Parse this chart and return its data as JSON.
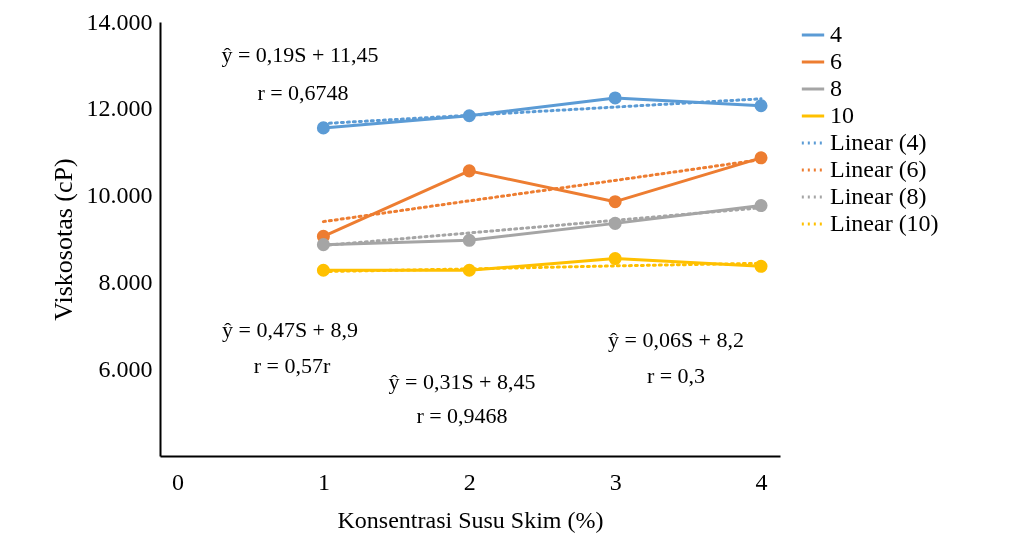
{
  "chart_data": {
    "type": "line",
    "xlabel": "Konsentrasi Susu Skim (%)",
    "ylabel": "Viskosotas (cP)",
    "xlim": [
      -0.12,
      4.13
    ],
    "xticks": [
      0,
      1,
      2,
      3,
      4
    ],
    "ylim": [
      4000,
      14000
    ],
    "yticks": [
      {
        "value": 6000,
        "label": "6.000"
      },
      {
        "value": 8000,
        "label": "8.000"
      },
      {
        "value": 10000,
        "label": "10.000"
      },
      {
        "value": 12000,
        "label": "12.000"
      },
      {
        "value": 14000,
        "label": "14.000"
      }
    ],
    "x": [
      1,
      2,
      3,
      4
    ],
    "marker": "circle",
    "grid": false,
    "legend": "right",
    "series": [
      {
        "name": "4",
        "color": "#5b9bd5",
        "values": [
          11560,
          11840,
          12250,
          12070
        ]
      },
      {
        "name": "6",
        "color": "#ed7d31",
        "values": [
          9060,
          10570,
          9860,
          10870
        ]
      },
      {
        "name": "8",
        "color": "#a5a5a5",
        "values": [
          8870,
          8970,
          9360,
          9770
        ]
      },
      {
        "name": "10",
        "color": "#ffc000",
        "values": [
          8280,
          8280,
          8550,
          8370
        ]
      },
      {
        "name": "Linear (4)",
        "color": "#5b9bd5",
        "values": [
          11660,
          11850,
          12040,
          12230
        ],
        "marker": "none",
        "line_style": "dotted"
      },
      {
        "name": "Linear (6)",
        "color": "#ed7d31",
        "values": [
          9400,
          9880,
          10350,
          10830
        ],
        "marker": "none",
        "line_style": "dotted"
      },
      {
        "name": "Linear (8)",
        "color": "#a5a5a5",
        "values": [
          8850,
          9140,
          9430,
          9720
        ],
        "marker": "none",
        "line_style": "dotted"
      },
      {
        "name": "Linear (10)",
        "color": "#ffc000",
        "values": [
          8250,
          8310,
          8380,
          8440
        ],
        "marker": "none",
        "line_style": "dotted"
      }
    ],
    "annotations": [
      "ŷ = 0,19S + 11,45",
      "r = 0,6748",
      "ŷ = 0,47S + 8,9",
      "r = 0,57r",
      "ŷ = 0,31S + 8,45",
      "r = 0,9468",
      "ŷ = 0,06S + 8,2",
      "r = 0,3"
    ]
  }
}
